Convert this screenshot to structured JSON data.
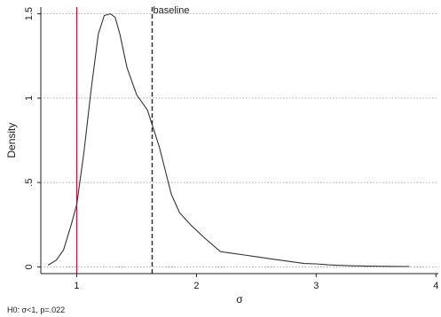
{
  "chart_data": {
    "type": "line",
    "title": "",
    "xlabel": "σ",
    "ylabel": "Density",
    "xlim": [
      0.7,
      4.02
    ],
    "ylim": [
      -0.04,
      1.54
    ],
    "grid": "horizontal-dotted",
    "x_ticks": [
      {
        "value": 1,
        "label": "1"
      },
      {
        "value": 2,
        "label": "2"
      },
      {
        "value": 3,
        "label": "3"
      },
      {
        "value": 4,
        "label": "4"
      }
    ],
    "y_ticks": [
      {
        "value": 0,
        "label": "0"
      },
      {
        "value": 0.5,
        "label": ".5"
      },
      {
        "value": 1,
        "label": "1"
      },
      {
        "value": 1.5,
        "label": "1.5"
      }
    ],
    "series": [
      {
        "color": "#333333",
        "x": [
          0.76,
          0.83,
          0.89,
          0.95,
          1.0,
          1.06,
          1.12,
          1.18,
          1.23,
          1.28,
          1.32,
          1.36,
          1.42,
          1.5,
          1.59,
          1.69,
          1.79,
          1.86,
          1.95,
          2.07,
          2.2,
          2.3,
          2.4,
          2.5,
          2.6,
          2.7,
          2.8,
          2.9,
          3.0,
          3.1,
          3.2,
          3.3,
          3.45,
          3.6,
          3.78
        ],
        "y": [
          0.01,
          0.04,
          0.1,
          0.24,
          0.37,
          0.68,
          1.05,
          1.38,
          1.49,
          1.5,
          1.48,
          1.38,
          1.18,
          1.02,
          0.93,
          0.71,
          0.43,
          0.32,
          0.25,
          0.17,
          0.09,
          0.08,
          0.07,
          0.06,
          0.05,
          0.04,
          0.03,
          0.02,
          0.018,
          0.012,
          0.009,
          0.006,
          0.004,
          0.003,
          0.002
        ]
      }
    ],
    "reference_lines": [
      {
        "value": 1,
        "color": "#c0143c",
        "style": "solid"
      },
      {
        "value": 1.63,
        "color": "#222222",
        "style": "dashed",
        "label": "baseline"
      }
    ],
    "note": "H0: σ<1, p=.022"
  }
}
